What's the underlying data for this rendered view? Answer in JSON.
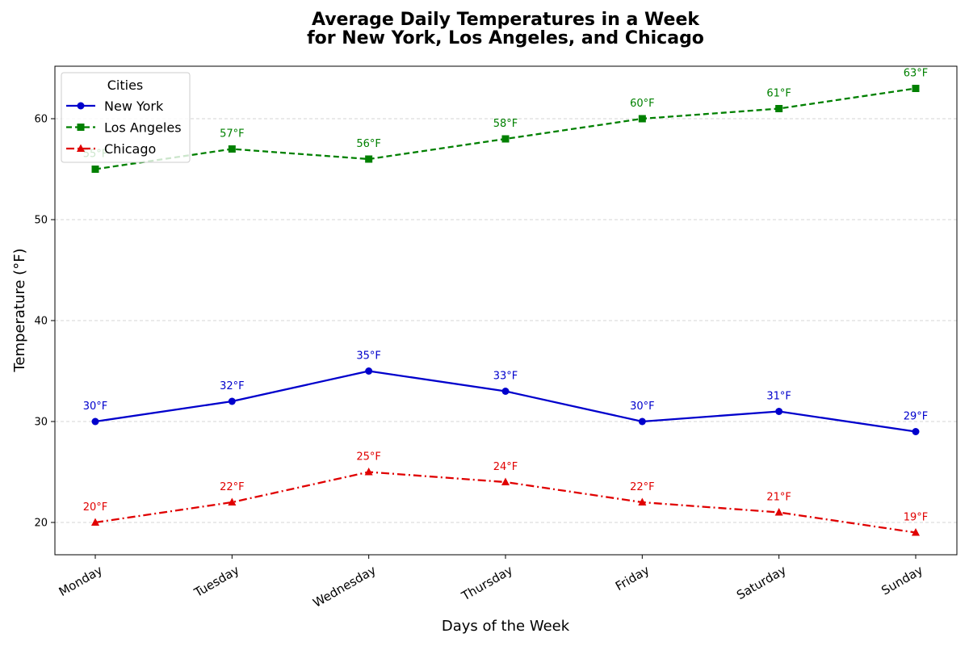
{
  "chart_data": {
    "type": "line",
    "title_lines": [
      "Average Daily Temperatures in a Week",
      "for New York, Los Angeles, and Chicago"
    ],
    "xlabel": "Days of the Week",
    "ylabel": "Temperature (°F)",
    "categories": [
      "Monday",
      "Tuesday",
      "Wednesday",
      "Thursday",
      "Friday",
      "Saturday",
      "Sunday"
    ],
    "ylim": [
      16.8,
      65.2
    ],
    "yticks": [
      20,
      30,
      40,
      50,
      60
    ],
    "grid": "y-dashed",
    "legend": {
      "title": "Cities",
      "placement": "top-left"
    },
    "label_suffix": "°F",
    "series": [
      {
        "name": "New York",
        "values": [
          30,
          32,
          35,
          33,
          30,
          31,
          29
        ],
        "color": "#0000cc",
        "marker": "circle",
        "dash": "solid"
      },
      {
        "name": "Los Angeles",
        "values": [
          55,
          57,
          56,
          58,
          60,
          61,
          63
        ],
        "color": "#008000",
        "marker": "square",
        "dash": "dashed"
      },
      {
        "name": "Chicago",
        "values": [
          20,
          22,
          25,
          24,
          22,
          21,
          19
        ],
        "color": "#e00000",
        "marker": "triangle",
        "dash": "dashdot"
      }
    ]
  }
}
